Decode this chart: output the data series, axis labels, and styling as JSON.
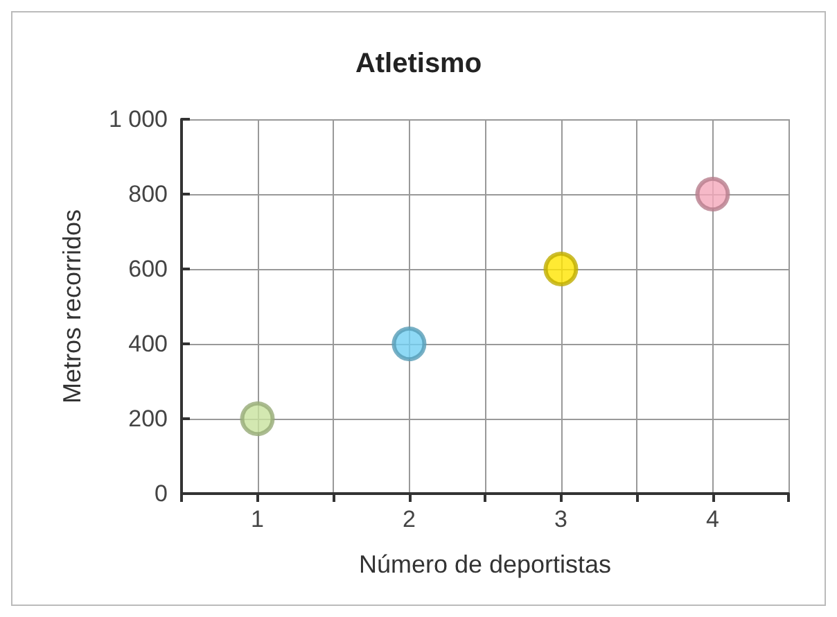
{
  "chart_data": {
    "type": "scatter",
    "title": "Atletismo",
    "xlabel": "Número de deportistas",
    "ylabel": "Metros recorridos",
    "x": [
      1,
      2,
      3,
      4
    ],
    "values": [
      200,
      400,
      600,
      800
    ],
    "colors": [
      "#c8e29e",
      "#72d0f2",
      "#ffe500",
      "#f4a7ba"
    ],
    "xlim": [
      0.5,
      4.5
    ],
    "xticks": [
      {
        "value": 0.5,
        "label": null
      },
      1,
      {
        "value": 1.5,
        "label": null
      },
      2,
      {
        "value": 2.5,
        "label": null
      },
      3,
      {
        "value": 3.5,
        "label": null
      },
      4,
      {
        "value": 4.5,
        "label": null
      }
    ],
    "ylim": [
      0,
      1000
    ],
    "yticks": [
      0,
      200,
      400,
      600,
      800,
      {
        "value": 1000,
        "label": "1 000"
      }
    ],
    "grid": true,
    "marker": "circle"
  }
}
